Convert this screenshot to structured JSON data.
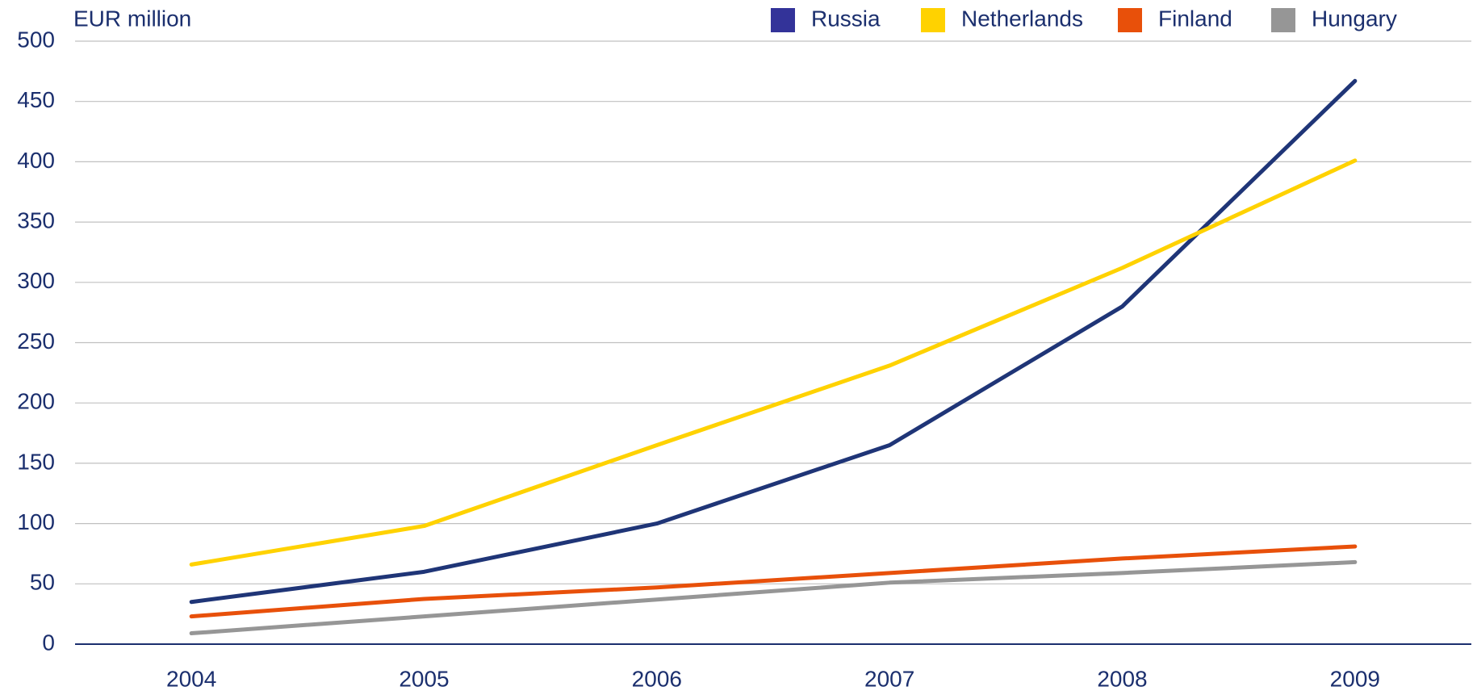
{
  "chart_data": {
    "type": "line",
    "y_axis_label": "EUR million",
    "categories": [
      "2004",
      "2005",
      "2006",
      "2007",
      "2008",
      "2009"
    ],
    "series": [
      {
        "name": "Russia",
        "color": "#1f3577",
        "values": [
          35,
          60,
          100,
          165,
          280,
          467
        ]
      },
      {
        "name": "Netherlands",
        "color": "#ffd200",
        "values": [
          66,
          98,
          165,
          231,
          312,
          401
        ]
      },
      {
        "name": "Finland",
        "color": "#e8500a",
        "values": [
          23,
          37.5,
          47,
          59,
          71,
          81
        ]
      },
      {
        "name": "Hungary",
        "color": "#969696",
        "values": [
          9,
          23,
          37,
          51,
          59,
          68
        ]
      }
    ],
    "ylim": [
      0,
      500
    ],
    "yticks": [
      0,
      50,
      100,
      150,
      200,
      250,
      300,
      350,
      400,
      450,
      500
    ],
    "grid": true,
    "legend": "top"
  }
}
